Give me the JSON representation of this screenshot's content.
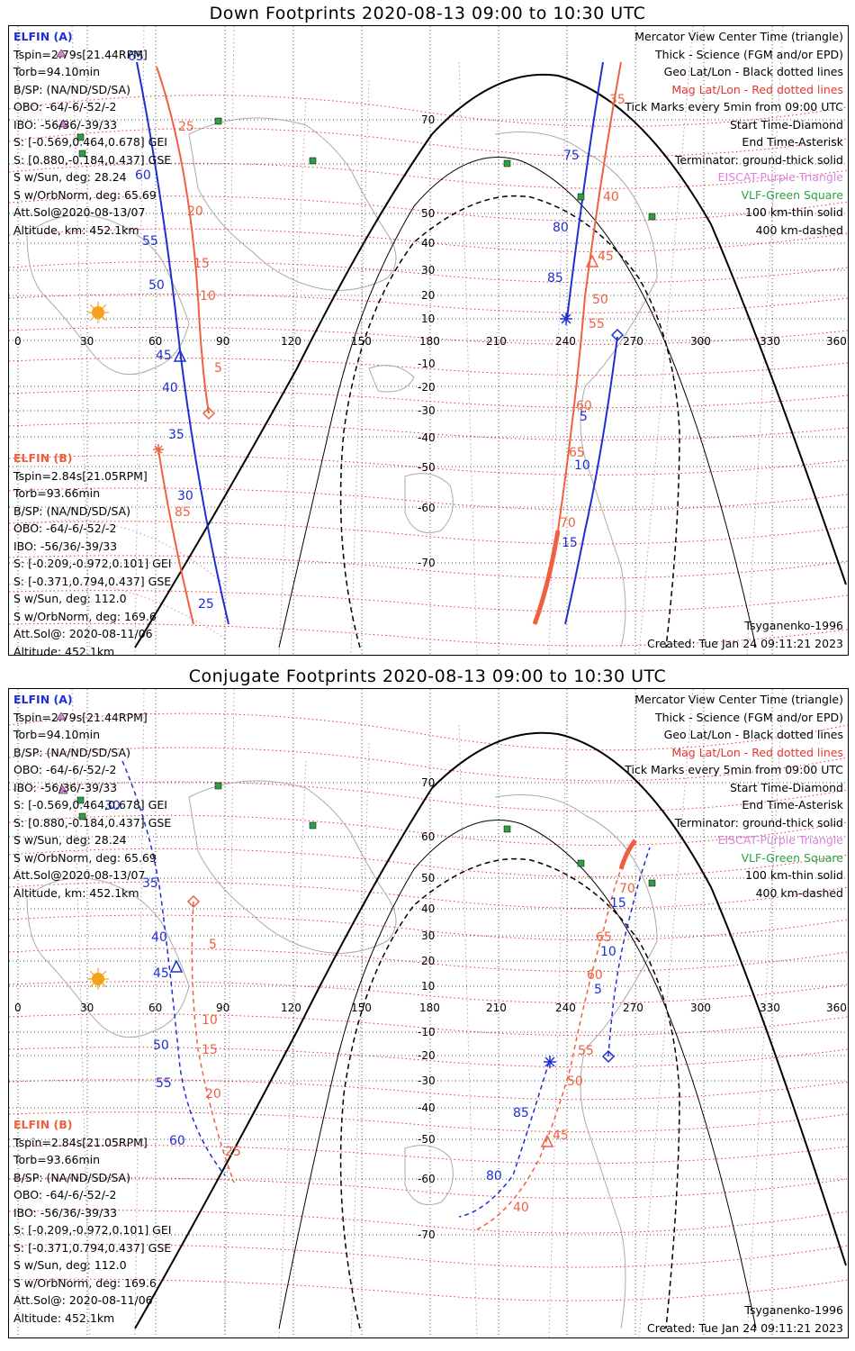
{
  "titles": {
    "down": "Down Footprints 2020-08-13 09:00 to 10:30 UTC",
    "conjugate": "Conjugate Footprints 2020-08-13 09:00 to 10:30 UTC"
  },
  "elfin_a": {
    "name": "ELFIN (A)",
    "lines": [
      "Tspin=2.79s[21.44RPM]",
      "Torb=94.10min",
      "B/SP: (NA/ND/SD/SA)",
      "OBO: -64/-6/-52/-2",
      "IBO: -56/36/-39/33",
      "S: [-0.569,0.464,0.678] GEI",
      "S: [0.880,-0.184,0.437] GSE",
      "S w/Sun, deg: 28.24",
      "S w/OrbNorm, deg: 65.69",
      "Att.Sol@2020-08-13/07",
      "Altitude, km: 452.1km"
    ]
  },
  "elfin_b": {
    "name": "ELFIN (B)",
    "lines": [
      "Tspin=2.84s[21.05RPM]",
      "Torb=93.66min",
      "B/SP: (NA/ND/SD/SA)",
      "OBO: -64/-6/-52/-2",
      "IBO: -56/36/-39/33",
      "S: [-0.209,-0.972,0.101] GEI",
      "S: [-0.371,0.794,0.437] GSE",
      "S w/Sun, deg: 112.0",
      "S w/OrbNorm, deg: 169.6",
      "Att.Sol@: 2020-08-11/06",
      "Altitude: 452.1km"
    ]
  },
  "legend": {
    "mercator": "Mercator View Center Time (triangle)",
    "thick": "Thick - Science (FGM and/or EPD)",
    "geo": "Geo Lat/Lon - Black dotted lines",
    "mag": "Mag Lat/Lon - Red dotted lines",
    "ticks": "Tick Marks every 5min from 09:00 UTC",
    "start": "Start Time-Diamond",
    "end": "End Time-Asterisk",
    "terminator": "Terminator: ground-thick solid",
    "eiscat": "EISCAT-Purple Triangle",
    "vlf": "VLF-Green Square",
    "km100": "100 km-thin solid",
    "km400": "400 km-dashed"
  },
  "footer": {
    "model": "Tsyganenko-1996",
    "created": "Created: Tue Jan 24 09:11:21 2023"
  },
  "axis": {
    "lon_ticks": [
      "0",
      "30",
      "60",
      "90",
      "120",
      "150",
      "180",
      "210",
      "240",
      "270",
      "300",
      "330",
      "360"
    ],
    "lat_ticks": [
      "70",
      "60",
      "50",
      "40",
      "30",
      "20",
      "10",
      "-10",
      "-20",
      "-30",
      "-40",
      "-50",
      "-60",
      "-70"
    ]
  },
  "colors": {
    "elfin_a": "#1d2fd1",
    "elfin_b": "#f06040",
    "mag_grid": "#e8352b",
    "geo_grid": "#000000",
    "eiscat": "#dc82dc",
    "vlf": "#2ea043",
    "sun": "#f4a21a"
  },
  "down_labels": {
    "a_track": [
      "65",
      "60",
      "55",
      "50",
      "45",
      "40",
      "35",
      "30",
      "25"
    ],
    "b_track": [
      "25",
      "20",
      "15",
      "10",
      "5",
      "85"
    ],
    "a_right": [
      "75",
      "80",
      "85",
      "5",
      "10",
      "15"
    ],
    "b_right": [
      "35",
      "40",
      "45",
      "50",
      "55",
      "60",
      "65",
      "70"
    ]
  },
  "conj_labels": {
    "a_track": [
      "30",
      "35",
      "40",
      "45",
      "50",
      "55",
      "60"
    ],
    "b_track": [
      "5",
      "10",
      "15",
      "20",
      "25"
    ],
    "a_right": [
      "85",
      "80",
      "5",
      "10",
      "15"
    ],
    "b_right": [
      "45",
      "40",
      "55",
      "50",
      "60",
      "65",
      "70"
    ]
  }
}
